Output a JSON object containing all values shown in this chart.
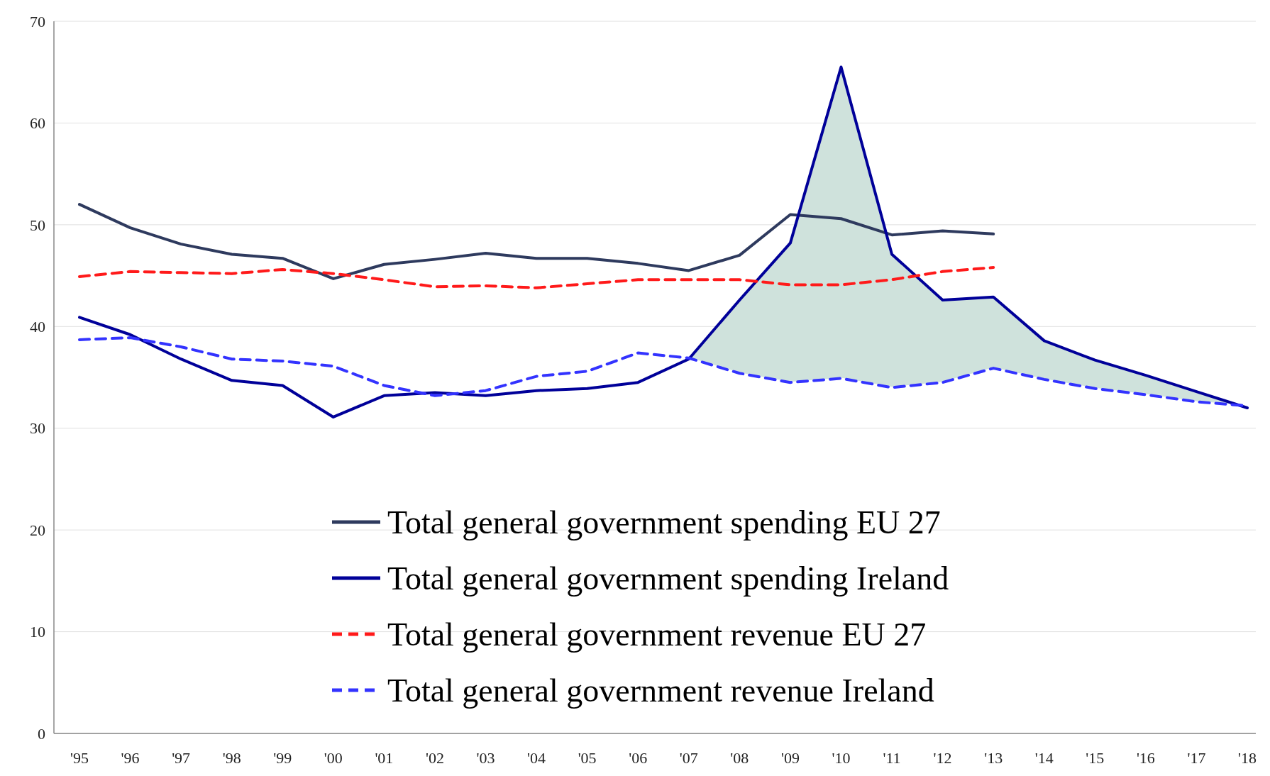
{
  "chart_data": {
    "type": "line",
    "categories": [
      "'95",
      "'96",
      "'97",
      "'98",
      "'99",
      "'00",
      "'01",
      "'02",
      "'03",
      "'04",
      "'05",
      "'06",
      "'07",
      "'08",
      "'09",
      "'10",
      "'11",
      "'12",
      "'13",
      "'14",
      "'15",
      "'16",
      "'17",
      "'18"
    ],
    "series": [
      {
        "name": "Total general government spending EU 27",
        "color": "#2e3a5e",
        "line_style": "solid",
        "values": [
          52,
          49.7,
          48.1,
          47.1,
          46.7,
          44.7,
          46.1,
          46.6,
          47.2,
          46.7,
          46.7,
          46.2,
          45.5,
          47.0,
          51.0,
          50.6,
          49.0,
          49.4,
          49.1,
          null,
          null,
          null,
          null,
          null
        ]
      },
      {
        "name": "Total general government spending Ireland",
        "color": "#000099",
        "line_style": "solid",
        "values": [
          40.9,
          39.2,
          36.8,
          34.7,
          34.2,
          31.1,
          33.2,
          33.5,
          33.2,
          33.7,
          33.9,
          34.5,
          36.8,
          42.6,
          48.2,
          65.5,
          47.1,
          42.6,
          42.9,
          38.6,
          36.7,
          35.2,
          33.6,
          32.0
        ],
        "lower": [
          null,
          null,
          null,
          null,
          null,
          null,
          null,
          null,
          null,
          null,
          null,
          null,
          36.9,
          35.4,
          34.5,
          34.9,
          34.0,
          34.5,
          35.9,
          34.8,
          33.9,
          33.3,
          32.6,
          32.2
        ],
        "upper": [
          null,
          null,
          null,
          null,
          null,
          null,
          null,
          null,
          null,
          null,
          null,
          null,
          36.8,
          42.6,
          48.2,
          65.5,
          47.1,
          42.6,
          42.9,
          38.6,
          36.7,
          35.2,
          33.6,
          32.0
        ]
      },
      {
        "name": "Total general government revenue EU 27",
        "color": "#ff1a1a",
        "line_style": "dashed",
        "values": [
          44.9,
          45.4,
          45.3,
          45.2,
          45.6,
          45.2,
          44.6,
          43.9,
          44.0,
          43.8,
          44.2,
          44.6,
          44.6,
          44.6,
          44.1,
          44.1,
          44.6,
          45.4,
          45.8,
          null,
          null,
          null,
          null,
          null
        ]
      },
      {
        "name": "Total general government revenue Ireland",
        "color": "#3333ff",
        "line_style": "dashed",
        "values": [
          38.7,
          38.9,
          38.0,
          36.8,
          36.6,
          36.1,
          34.2,
          33.2,
          33.7,
          35.1,
          35.6,
          37.4,
          36.9,
          35.4,
          34.5,
          34.9,
          34.0,
          34.5,
          35.9,
          34.8,
          33.9,
          33.3,
          32.6,
          32.2
        ]
      }
    ],
    "ylim": [
      0,
      70
    ],
    "yticks": [
      0,
      10,
      20,
      30,
      40,
      50,
      60,
      70
    ],
    "grid": "y",
    "legend": "bottom"
  }
}
